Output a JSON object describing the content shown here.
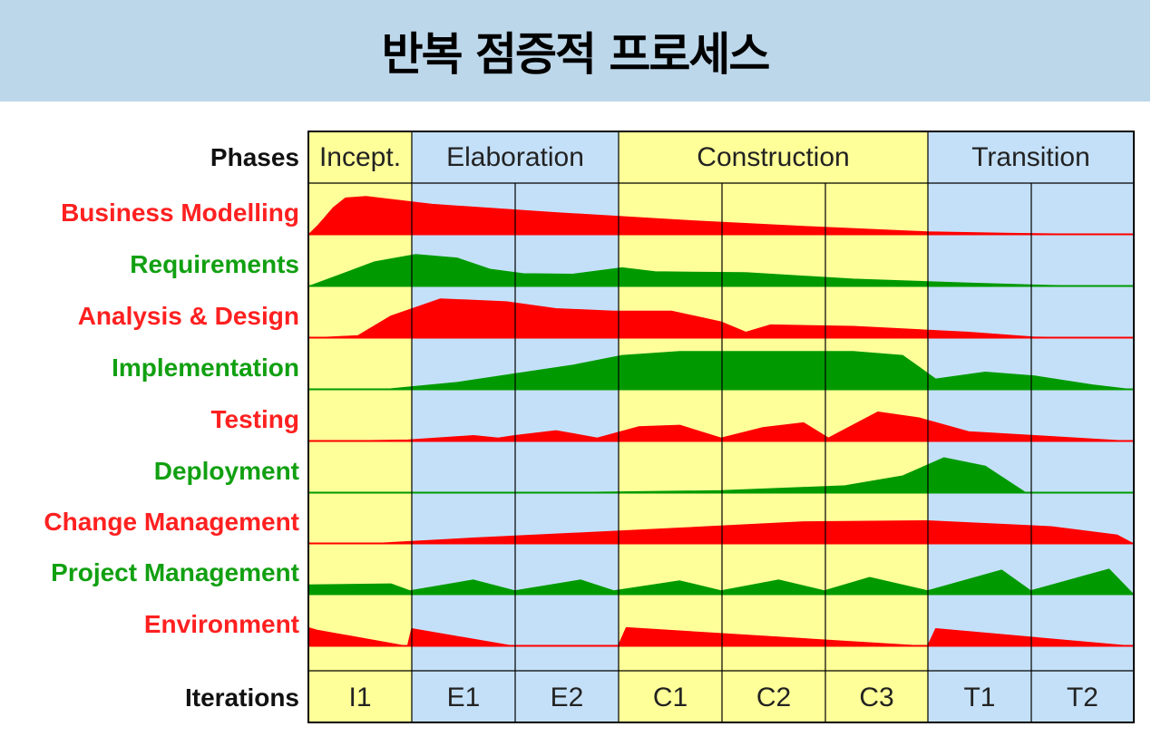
{
  "title": "반복 점증적 프로세스",
  "colors": {
    "red": "#ff0000",
    "green": "#009a00",
    "yellow": "#ffff99",
    "blue": "#c4e0f8",
    "title_bg": "#bdd7ea"
  },
  "phases_label": "Phases",
  "iterations_label": "Iterations",
  "phases": [
    {
      "label": "Incept.",
      "color": "yellow"
    },
    {
      "label": "Elaboration",
      "color": "blue"
    },
    {
      "label": "Construction",
      "color": "yellow"
    },
    {
      "label": "Transition",
      "color": "blue"
    }
  ],
  "iterations": [
    "I1",
    "E1",
    "E2",
    "C1",
    "C2",
    "C3",
    "T1",
    "T2"
  ],
  "disciplines": [
    {
      "label": "Business Modelling",
      "color": "red"
    },
    {
      "label": "Requirements",
      "color": "green"
    },
    {
      "label": "Analysis & Design",
      "color": "red"
    },
    {
      "label": "Implementation",
      "color": "green"
    },
    {
      "label": "Testing",
      "color": "red"
    },
    {
      "label": "Deployment",
      "color": "green"
    },
    {
      "label": "Change Management",
      "color": "red"
    },
    {
      "label": "Project Management",
      "color": "green"
    },
    {
      "label": "Environment",
      "color": "red"
    }
  ]
}
